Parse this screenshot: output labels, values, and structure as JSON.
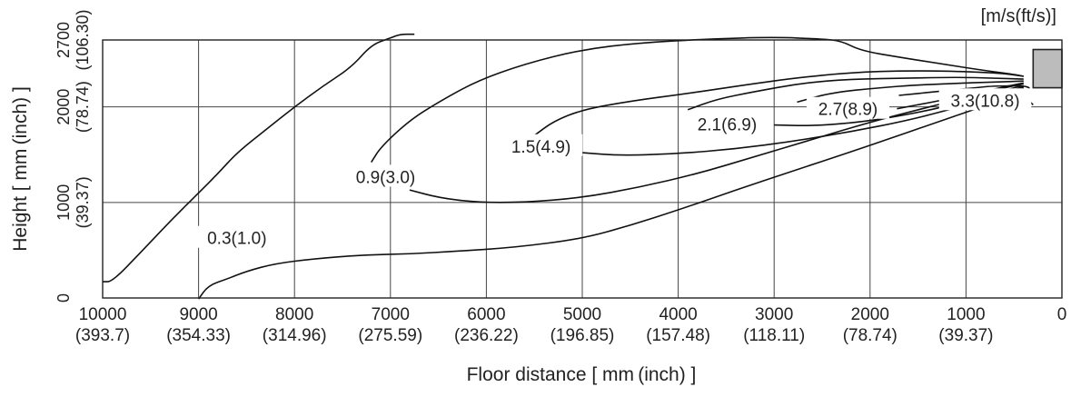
{
  "chart_data": {
    "type": "contour",
    "unit_label": "[m/s(ft/s)]",
    "xlabel": "Floor distance [ mm (inch) ]",
    "ylabel": "Height [ mm (inch) ]",
    "xlim": [
      10000,
      0
    ],
    "ylim": [
      0,
      2700
    ],
    "x_ticks": [
      {
        "value": 10000,
        "label": "10000",
        "sub": "(393.7)"
      },
      {
        "value": 9000,
        "label": "9000",
        "sub": "(354.33)"
      },
      {
        "value": 8000,
        "label": "8000",
        "sub": "(314.96)"
      },
      {
        "value": 7000,
        "label": "7000",
        "sub": "(275.59)"
      },
      {
        "value": 6000,
        "label": "6000",
        "sub": "(236.22)"
      },
      {
        "value": 5000,
        "label": "5000",
        "sub": "(196.85)"
      },
      {
        "value": 4000,
        "label": "4000",
        "sub": "(157.48)"
      },
      {
        "value": 3000,
        "label": "3000",
        "sub": "(118.11)"
      },
      {
        "value": 2000,
        "label": "2000",
        "sub": "(78.74)"
      },
      {
        "value": 1000,
        "label": "1000",
        "sub": "(39.37)"
      },
      {
        "value": 0,
        "label": "0",
        "sub": ""
      }
    ],
    "y_ticks": [
      {
        "value": 0,
        "label": "0",
        "sub": ""
      },
      {
        "value": 1000,
        "label": "1000",
        "sub": "(39.37)"
      },
      {
        "value": 2000,
        "label": "2000",
        "sub": "(78.74)"
      },
      {
        "value": 2700,
        "label": "2700",
        "sub": "(106.30)"
      }
    ],
    "grid": true,
    "unit_box": {
      "x": [
        300,
        0
      ],
      "y": [
        2200,
        2600
      ]
    },
    "contours": [
      {
        "label": "0.3(1.0)",
        "label_at": [
          8600,
          630
        ],
        "points": [
          [
            10000,
            170
          ],
          [
            9900,
            170
          ],
          [
            9600,
            480
          ],
          [
            9300,
            800
          ],
          [
            9000,
            1100
          ],
          [
            8800,
            1300
          ],
          [
            8600,
            1520
          ],
          [
            8300,
            1760
          ],
          [
            8000,
            2000
          ],
          [
            7700,
            2220
          ],
          [
            7400,
            2420
          ],
          [
            7200,
            2650
          ],
          [
            7000,
            2720
          ],
          [
            6900,
            2760
          ],
          [
            6750,
            2760
          ]
        ]
      },
      {
        "label": "0.3(1.0)",
        "label_at": null,
        "points": [
          [
            9000,
            -10
          ],
          [
            8900,
            130
          ],
          [
            8700,
            200
          ],
          [
            8500,
            280
          ],
          [
            8200,
            360
          ],
          [
            7800,
            410
          ],
          [
            7300,
            450
          ],
          [
            6800,
            460
          ],
          [
            6300,
            490
          ],
          [
            5700,
            530
          ],
          [
            5000,
            620
          ],
          [
            4500,
            760
          ],
          [
            4000,
            920
          ],
          [
            3400,
            1130
          ],
          [
            2800,
            1330
          ],
          [
            2200,
            1530
          ],
          [
            1700,
            1700
          ],
          [
            1300,
            1840
          ],
          [
            950,
            1960
          ],
          [
            700,
            2050
          ],
          [
            500,
            2150
          ],
          [
            400,
            2200
          ]
        ]
      },
      {
        "label": "0.9(3.0)",
        "label_at": [
          7050,
          1270
        ],
        "points": [
          [
            6800,
            1130
          ],
          [
            6500,
            1050
          ],
          [
            6100,
            1000
          ],
          [
            5600,
            1000
          ],
          [
            5000,
            1050
          ],
          [
            4400,
            1160
          ],
          [
            3800,
            1300
          ],
          [
            3200,
            1480
          ],
          [
            2600,
            1660
          ],
          [
            2000,
            1840
          ],
          [
            1500,
            1970
          ],
          [
            1100,
            2070
          ],
          [
            800,
            2150
          ],
          [
            550,
            2210
          ],
          [
            400,
            2240
          ]
        ]
      },
      {
        "label": "0.9(3.0)",
        "label_at": null,
        "points": [
          [
            7200,
            1420
          ],
          [
            7100,
            1580
          ],
          [
            6800,
            1860
          ],
          [
            6500,
            2050
          ],
          [
            6100,
            2270
          ],
          [
            5600,
            2450
          ],
          [
            5000,
            2600
          ],
          [
            4400,
            2670
          ],
          [
            3700,
            2710
          ],
          [
            3000,
            2730
          ],
          [
            2500,
            2710
          ],
          [
            2300,
            2690
          ],
          [
            2100,
            2590
          ],
          [
            1700,
            2520
          ],
          [
            1200,
            2440
          ],
          [
            800,
            2380
          ],
          [
            500,
            2340
          ],
          [
            400,
            2320
          ]
        ]
      },
      {
        "label": "1.5(4.9)",
        "label_at": [
          5430,
          1590
        ],
        "points": [
          [
            5000,
            1520
          ],
          [
            4600,
            1490
          ],
          [
            4000,
            1510
          ],
          [
            3400,
            1560
          ],
          [
            2800,
            1640
          ],
          [
            2200,
            1740
          ],
          [
            1600,
            1860
          ],
          [
            1100,
            1990
          ],
          [
            800,
            2080
          ],
          [
            500,
            2180
          ],
          [
            400,
            2210
          ]
        ]
      },
      {
        "label": "1.5(4.9)",
        "label_at": null,
        "points": [
          [
            5500,
            1700
          ],
          [
            5300,
            1850
          ],
          [
            5000,
            1970
          ],
          [
            4500,
            2060
          ],
          [
            3900,
            2140
          ],
          [
            3300,
            2230
          ],
          [
            2800,
            2300
          ],
          [
            2200,
            2360
          ],
          [
            1600,
            2380
          ],
          [
            1000,
            2370
          ],
          [
            600,
            2350
          ],
          [
            400,
            2320
          ]
        ]
      },
      {
        "label": "2.1(6.9)",
        "label_at": [
          3490,
          1820
        ],
        "points": [
          [
            3000,
            1810
          ],
          [
            2600,
            1800
          ],
          [
            2100,
            1840
          ],
          [
            1600,
            1920
          ],
          [
            1100,
            2030
          ],
          [
            800,
            2120
          ],
          [
            500,
            2200
          ],
          [
            400,
            2220
          ]
        ]
      },
      {
        "label": "2.1(6.9)",
        "label_at": null,
        "points": [
          [
            3900,
            1970
          ],
          [
            3600,
            2080
          ],
          [
            3200,
            2160
          ],
          [
            2700,
            2250
          ],
          [
            2200,
            2290
          ],
          [
            1600,
            2300
          ],
          [
            1100,
            2310
          ],
          [
            700,
            2300
          ],
          [
            400,
            2290
          ]
        ]
      },
      {
        "label": "2.7(8.9)",
        "label_at": [
          2230,
          1980
        ],
        "points": [
          [
            1720,
            1980
          ],
          [
            1300,
            2060
          ],
          [
            900,
            2140
          ],
          [
            600,
            2210
          ],
          [
            400,
            2250
          ]
        ]
      },
      {
        "label": "2.7(8.9)",
        "label_at": null,
        "points": [
          [
            2760,
            2050
          ],
          [
            2400,
            2150
          ],
          [
            1900,
            2200
          ],
          [
            1500,
            2230
          ],
          [
            1000,
            2250
          ],
          [
            700,
            2260
          ],
          [
            400,
            2270
          ]
        ]
      },
      {
        "label": "3.3(10.8)",
        "label_at": [
          800,
          2070
        ],
        "points": [
          [
            300,
            2020
          ],
          [
            400,
            2130
          ],
          [
            300,
            2220
          ],
          [
            700,
            2220
          ],
          [
            900,
            2200
          ],
          [
            1100,
            2180
          ],
          [
            1300,
            2160
          ],
          [
            1700,
            2120
          ]
        ]
      }
    ]
  }
}
